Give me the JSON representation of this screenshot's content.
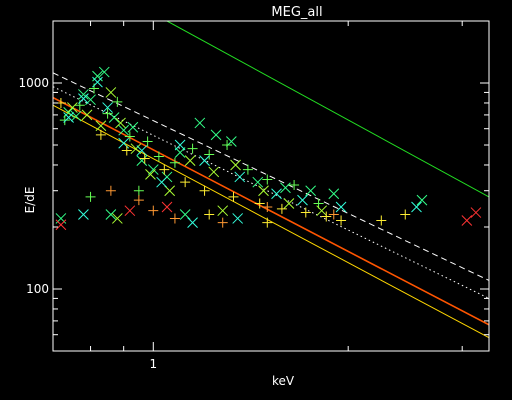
{
  "chart_data": {
    "type": "scatter",
    "title": "MEG_all",
    "xlabel": "keV",
    "ylabel": "E/dE",
    "xscale": "log",
    "yscale": "log",
    "xlim": [
      0.7,
      3.3
    ],
    "ylim": [
      50,
      2000
    ],
    "grid": false,
    "background": "#000000",
    "x_tick_labels": [
      {
        "value": 1,
        "label": "1"
      }
    ],
    "y_tick_labels": [
      {
        "value": 100,
        "label": "100"
      },
      {
        "value": 1000,
        "label": "1000"
      }
    ],
    "lines": [
      {
        "style": "solid",
        "color": "#22dd22",
        "x": [
          1.05,
          3.3
        ],
        "y": [
          2000,
          280
        ]
      },
      {
        "style": "dashed",
        "color": "#ffffff",
        "x": [
          0.7,
          3.3
        ],
        "y": [
          1120,
          110
        ]
      },
      {
        "style": "dotted",
        "color": "#ffffff",
        "x": [
          0.7,
          3.3
        ],
        "y": [
          960,
          90
        ]
      },
      {
        "style": "solid",
        "color": "#ff5500",
        "x": [
          0.7,
          3.3
        ],
        "y": [
          850,
          67
        ]
      },
      {
        "style": "solid",
        "color": "#ffd700",
        "x": [
          0.7,
          3.3
        ],
        "y": [
          780,
          58
        ]
      }
    ],
    "series": [
      {
        "marker": "x",
        "color": "#33ff88",
        "points": [
          [
            0.74,
            720
          ],
          [
            0.76,
            690
          ],
          [
            0.78,
            880
          ],
          [
            0.8,
            830
          ],
          [
            0.82,
            1080
          ],
          [
            0.84,
            1130
          ],
          [
            0.87,
            680
          ],
          [
            0.9,
            590
          ],
          [
            0.93,
            610
          ],
          [
            0.96,
            420
          ],
          [
            1.0,
            380
          ],
          [
            1.05,
            350
          ],
          [
            1.1,
            460
          ],
          [
            1.18,
            640
          ],
          [
            1.25,
            560
          ],
          [
            1.32,
            520
          ],
          [
            1.45,
            330
          ],
          [
            1.6,
            310
          ],
          [
            1.75,
            300
          ],
          [
            1.9,
            290
          ],
          [
            2.6,
            270
          ],
          [
            0.72,
            220
          ],
          [
            0.86,
            230
          ],
          [
            1.12,
            230
          ]
        ]
      },
      {
        "marker": "+",
        "color": "#66ff55",
        "points": [
          [
            0.73,
            660
          ],
          [
            0.77,
            780
          ],
          [
            0.81,
            940
          ],
          [
            0.85,
            710
          ],
          [
            0.88,
            810
          ],
          [
            0.92,
            550
          ],
          [
            0.98,
            520
          ],
          [
            1.02,
            440
          ],
          [
            1.08,
            410
          ],
          [
            1.15,
            480
          ],
          [
            1.22,
            450
          ],
          [
            1.3,
            500
          ],
          [
            1.4,
            380
          ],
          [
            1.5,
            340
          ],
          [
            1.65,
            320
          ],
          [
            1.8,
            260
          ],
          [
            0.8,
            280
          ],
          [
            0.95,
            300
          ]
        ]
      },
      {
        "marker": "x",
        "color": "#aaff33",
        "points": [
          [
            0.75,
            760
          ],
          [
            0.79,
            700
          ],
          [
            0.83,
            620
          ],
          [
            0.86,
            900
          ],
          [
            0.89,
            640
          ],
          [
            0.94,
            480
          ],
          [
            0.99,
            360
          ],
          [
            1.06,
            300
          ],
          [
            1.14,
            420
          ],
          [
            1.24,
            370
          ],
          [
            1.34,
            400
          ],
          [
            1.48,
            300
          ],
          [
            1.62,
            260
          ],
          [
            1.82,
            240
          ],
          [
            0.88,
            220
          ],
          [
            1.28,
            240
          ]
        ]
      },
      {
        "marker": "x",
        "color": "#33ffdd",
        "points": [
          [
            0.74,
            680
          ],
          [
            0.78,
            840
          ],
          [
            0.82,
            1010
          ],
          [
            0.85,
            760
          ],
          [
            0.9,
            510
          ],
          [
            0.96,
            470
          ],
          [
            1.03,
            330
          ],
          [
            1.1,
            500
          ],
          [
            1.2,
            420
          ],
          [
            1.36,
            350
          ],
          [
            1.55,
            290
          ],
          [
            1.7,
            270
          ],
          [
            1.95,
            250
          ],
          [
            2.55,
            250
          ],
          [
            0.78,
            230
          ],
          [
            1.15,
            210
          ],
          [
            1.35,
            220
          ]
        ]
      },
      {
        "marker": "+",
        "color": "#ffee33",
        "points": [
          [
            0.72,
            800
          ],
          [
            0.83,
            560
          ],
          [
            0.91,
            470
          ],
          [
            0.97,
            430
          ],
          [
            1.04,
            380
          ],
          [
            1.12,
            330
          ],
          [
            1.2,
            300
          ],
          [
            1.33,
            280
          ],
          [
            1.46,
            260
          ],
          [
            1.58,
            245
          ],
          [
            1.72,
            235
          ],
          [
            1.85,
            225
          ],
          [
            1.95,
            215
          ],
          [
            2.25,
            215
          ],
          [
            2.45,
            230
          ],
          [
            1.22,
            230
          ],
          [
            1.5,
            210
          ]
        ]
      },
      {
        "marker": "+",
        "color": "#ff9933",
        "points": [
          [
            0.86,
            300
          ],
          [
            0.95,
            270
          ],
          [
            1.0,
            240
          ],
          [
            1.08,
            220
          ],
          [
            1.28,
            210
          ],
          [
            1.5,
            250
          ],
          [
            1.9,
            230
          ]
        ]
      },
      {
        "marker": "x",
        "color": "#ff3333",
        "points": [
          [
            0.72,
            205
          ],
          [
            0.92,
            240
          ],
          [
            1.05,
            250
          ],
          [
            3.05,
            215
          ],
          [
            3.15,
            235
          ]
        ]
      }
    ]
  }
}
